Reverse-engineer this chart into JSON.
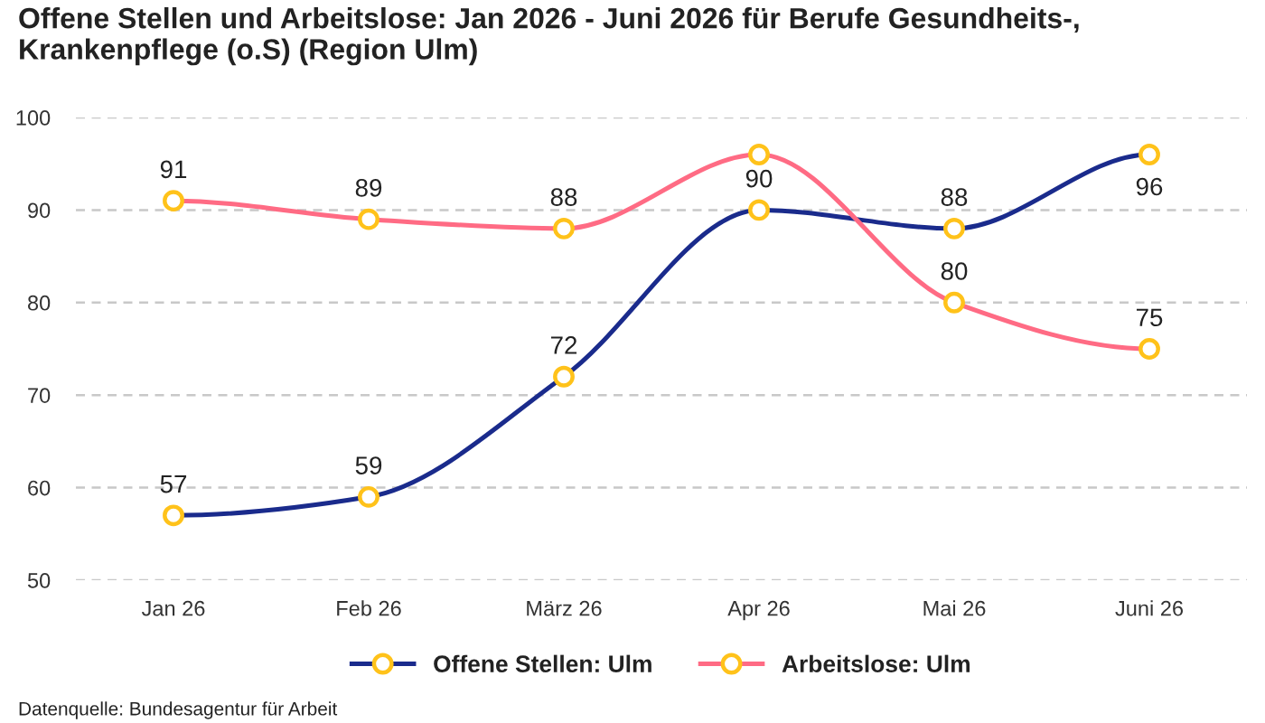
{
  "chart_data": {
    "type": "line",
    "title": "Offene Stellen und Arbeitslose: Jan 2026 - Juni 2026 für Berufe Gesundheits-, Krankenpflege (o.S) (Region Ulm)",
    "categories": [
      "Jan 26",
      "Feb 26",
      "März 26",
      "Apr 26",
      "Mai 26",
      "Juni 26"
    ],
    "series": [
      {
        "name": "Offene Stellen: Ulm",
        "color": "#1a2b8c",
        "values": [
          57,
          59,
          72,
          90,
          88,
          96
        ],
        "value_labels": [
          "57",
          "59",
          "72",
          "90",
          "88",
          "96"
        ]
      },
      {
        "name": "Arbeitslose: Ulm",
        "color": "#ff6b84",
        "values": [
          91,
          89,
          88,
          96,
          80,
          75
        ],
        "value_labels": [
          "91",
          "89",
          "88",
          null,
          "80",
          "75"
        ]
      }
    ],
    "ylim": [
      50,
      100
    ],
    "yticks": [
      50,
      60,
      70,
      80,
      90,
      100
    ],
    "grid": "y",
    "legend": "bottom",
    "marker": "circle",
    "line_style": "solid",
    "annotations": [
      "Datenquelle: Bundesagentur für Arbeit"
    ]
  }
}
